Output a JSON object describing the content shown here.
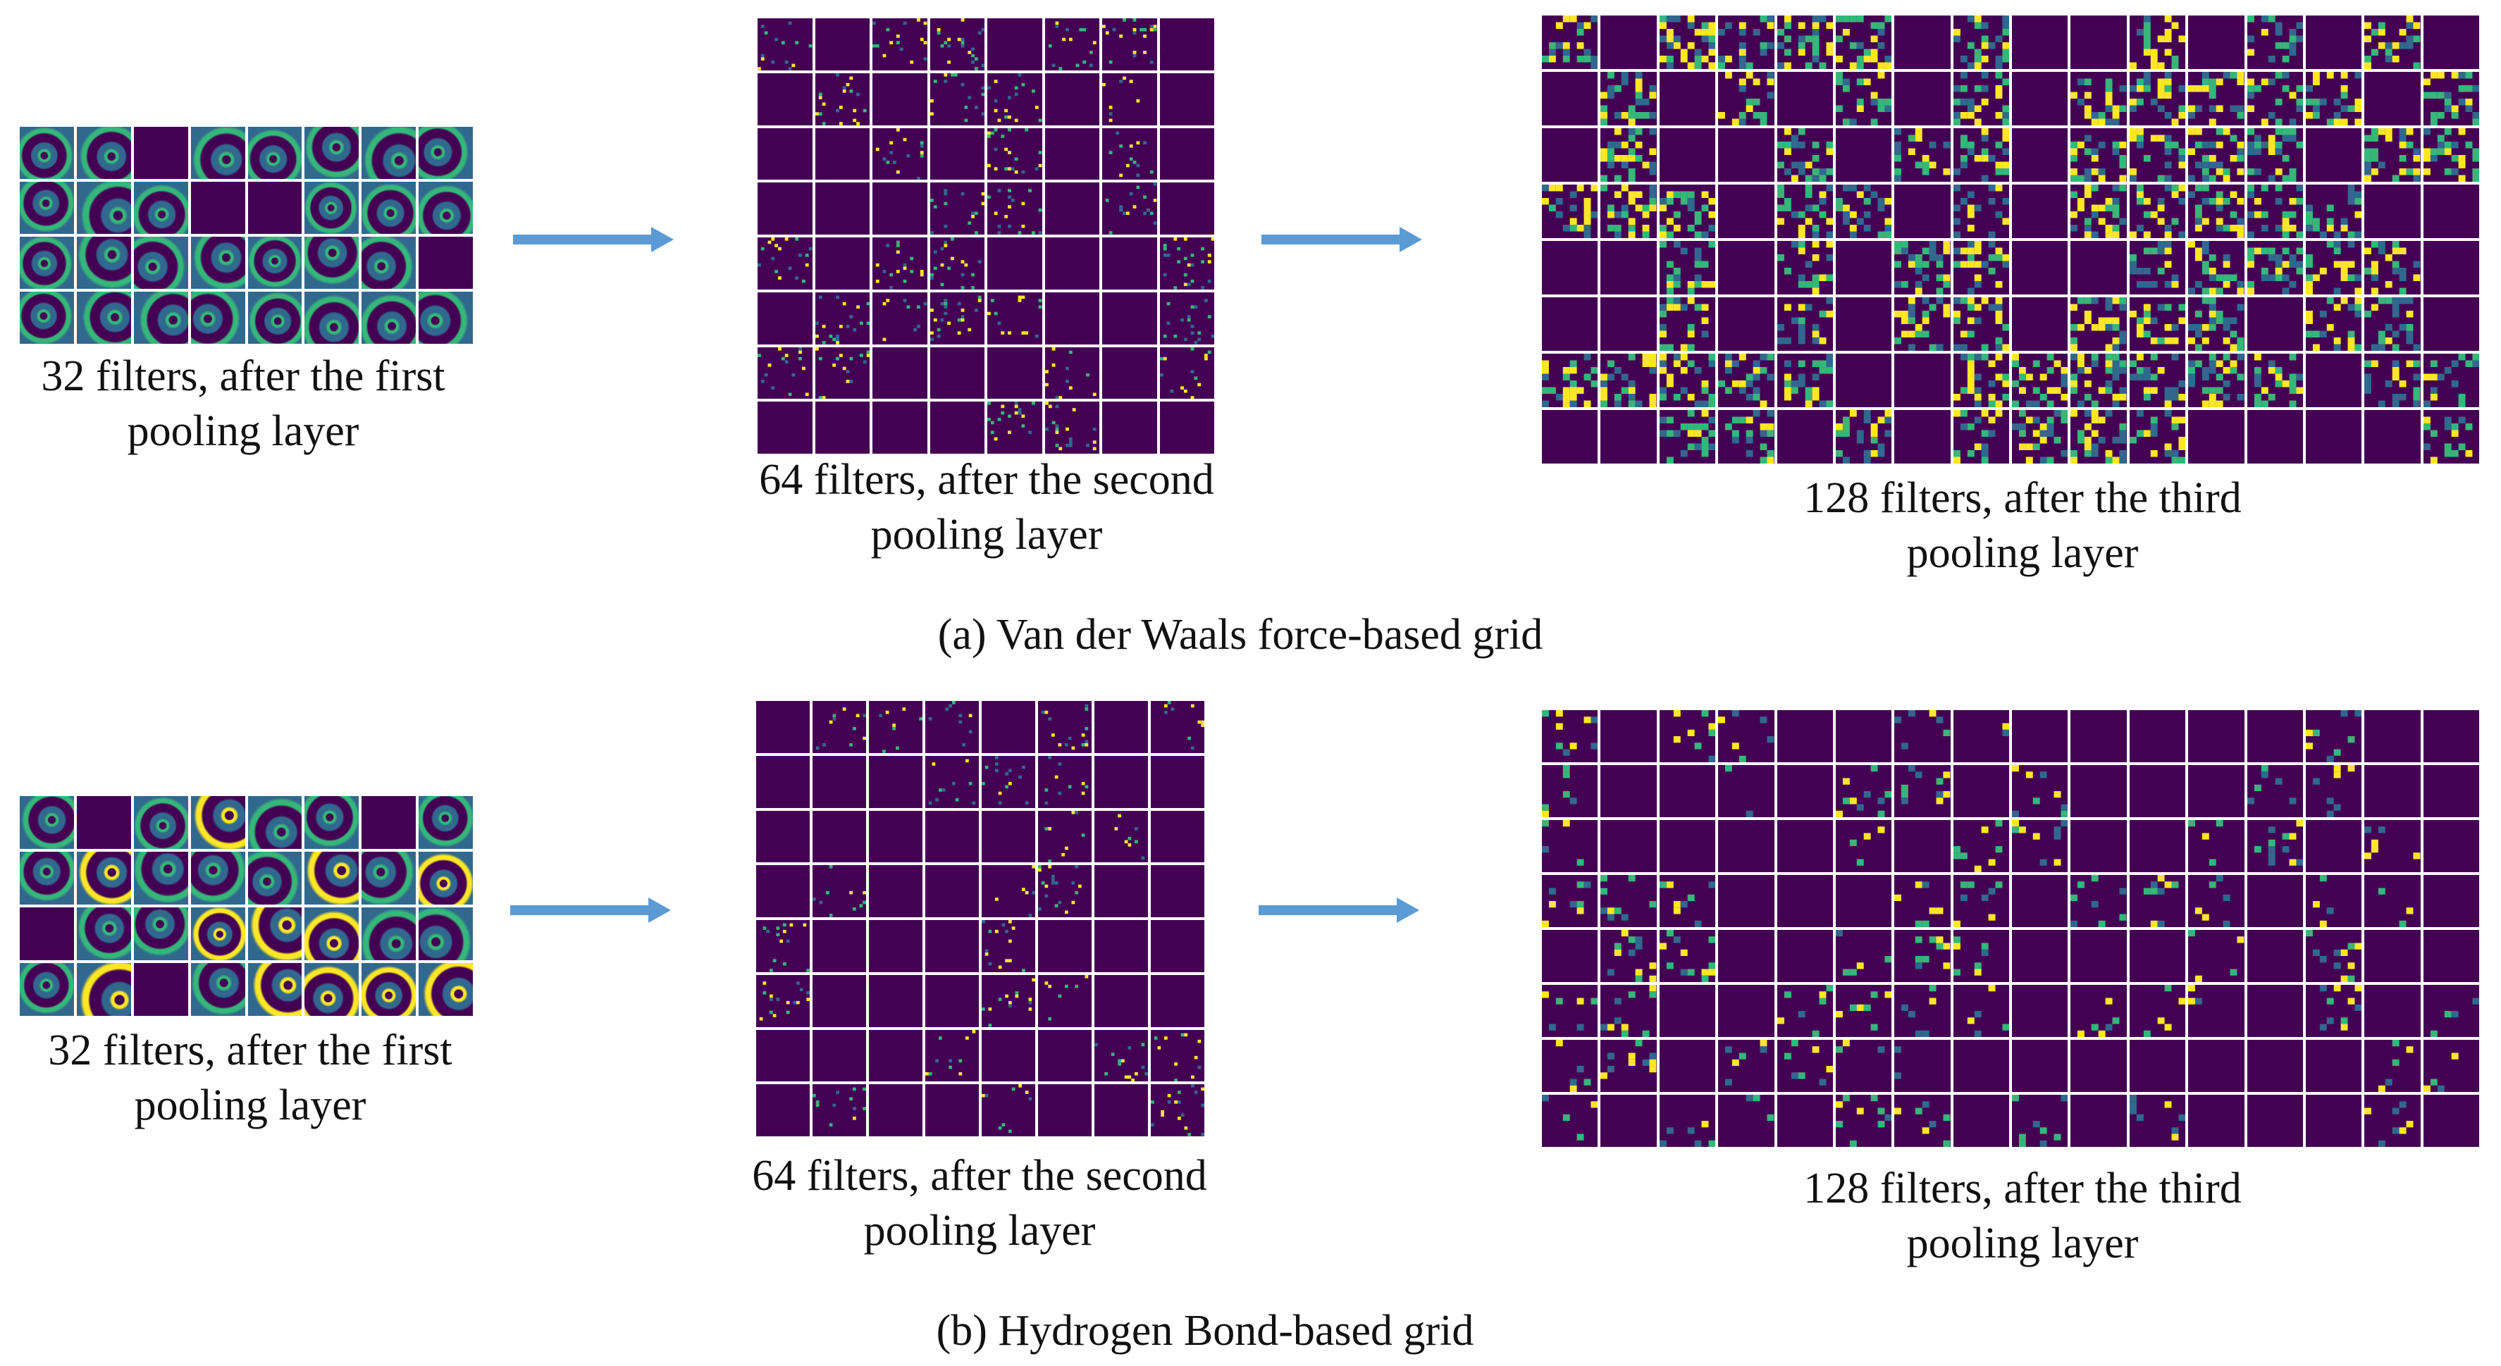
{
  "colors": {
    "background": "#ffffff",
    "tile_dark": "#440154",
    "tile_mid": "#31688e",
    "tile_teal": "#35b779",
    "tile_yellow": "#fde725",
    "arrow": "#5b9bd5"
  },
  "panel_a": {
    "label": "(a) Van der Waals force-based grid",
    "layer1": {
      "caption_line1": "32 filters, after the first",
      "caption_line2": "pooling layer",
      "rows": 4,
      "cols": 8
    },
    "layer2": {
      "caption_line1": "64 filters, after the second",
      "caption_line2": "pooling layer",
      "rows": 8,
      "cols": 8
    },
    "layer3": {
      "caption_line1": "128 filters, after the third",
      "caption_line2": "pooling layer",
      "rows": 8,
      "cols": 16
    }
  },
  "panel_b": {
    "label": "(b) Hydrogen Bond-based grid",
    "layer1": {
      "caption_line1": "32 filters, after the first",
      "caption_line2": "pooling layer",
      "rows": 4,
      "cols": 8
    },
    "layer2": {
      "caption_line1": "64 filters, after the second",
      "caption_line2": "pooling layer",
      "rows": 8,
      "cols": 8
    },
    "layer3": {
      "caption_line1": "128 filters, after the third",
      "caption_line2": "pooling layer",
      "rows": 8,
      "cols": 16
    }
  }
}
